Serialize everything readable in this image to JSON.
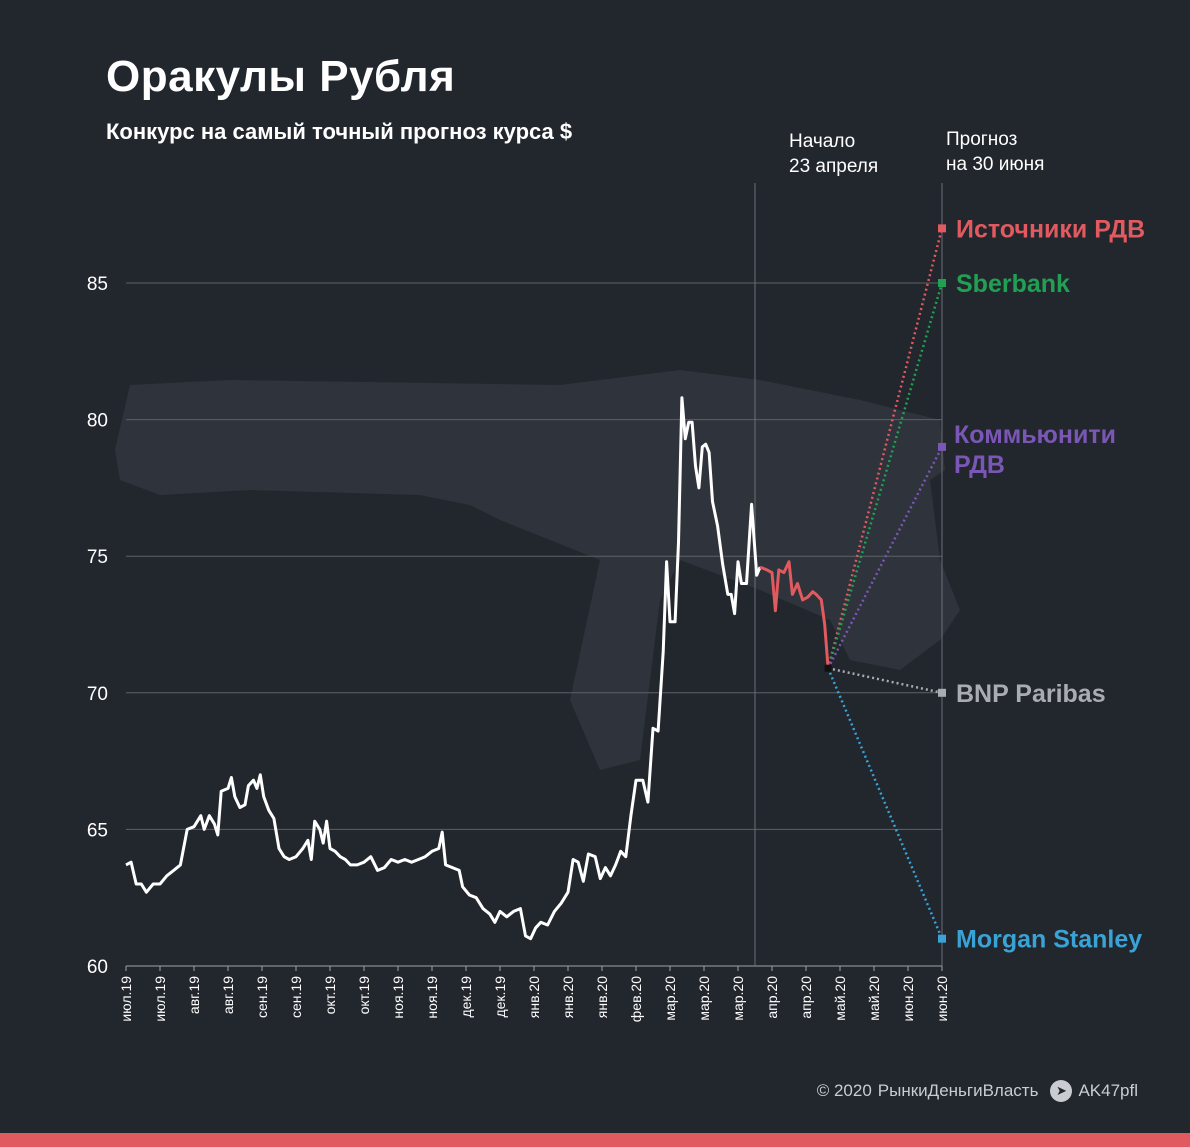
{
  "title": "Оракулы Рубля",
  "subtitle": "Конкурс на самый точный прогноз курса $",
  "annotations": {
    "start_line1": "Начало",
    "start_line2": "23 апреля",
    "forecast_line1": "Прогноз",
    "forecast_line2": "на 30 июня"
  },
  "footer": {
    "copyright": "© 2020",
    "brand": "РынкиДеньгиВласть",
    "telegram_icon": "telegram-icon",
    "handle": "AK47pfl"
  },
  "colors": {
    "background": "#22262d",
    "history": "#ffffff",
    "recent": "#e05a5f",
    "bottom_bar": "#e05a5f"
  },
  "chart_data": {
    "type": "line",
    "ylim": [
      60,
      88
    ],
    "yticks": [
      60,
      65,
      70,
      75,
      80,
      85
    ],
    "grid": true,
    "x_tick_labels": [
      "июл.19",
      "июл.19",
      "авг.19",
      "авг.19",
      "сен.19",
      "сен.19",
      "окт.19",
      "окт.19",
      "ноя.19",
      "ноя.19",
      "дек.19",
      "дек.19",
      "янв.20",
      "янв.20",
      "янв.20",
      "фев.20",
      "мар.20",
      "мар.20",
      "мар.20",
      "апр.20",
      "апр.20",
      "май.20",
      "май.20",
      "июн.20",
      "июн.20"
    ],
    "history": [
      [
        0,
        63.7
      ],
      [
        0.15,
        63.8
      ],
      [
        0.3,
        63.0
      ],
      [
        0.45,
        63.0
      ],
      [
        0.6,
        62.7
      ],
      [
        0.8,
        63.0
      ],
      [
        1.0,
        63.0
      ],
      [
        1.2,
        63.3
      ],
      [
        1.4,
        63.5
      ],
      [
        1.6,
        63.7
      ],
      [
        1.8,
        65.0
      ],
      [
        2.0,
        65.1
      ],
      [
        2.2,
        65.5
      ],
      [
        2.3,
        65.0
      ],
      [
        2.45,
        65.5
      ],
      [
        2.6,
        65.2
      ],
      [
        2.7,
        64.8
      ],
      [
        2.8,
        66.4
      ],
      [
        3.0,
        66.5
      ],
      [
        3.1,
        66.9
      ],
      [
        3.2,
        66.2
      ],
      [
        3.35,
        65.8
      ],
      [
        3.5,
        65.9
      ],
      [
        3.6,
        66.6
      ],
      [
        3.75,
        66.8
      ],
      [
        3.85,
        66.5
      ],
      [
        3.95,
        67.0
      ],
      [
        4.05,
        66.2
      ],
      [
        4.2,
        65.7
      ],
      [
        4.35,
        65.4
      ],
      [
        4.5,
        64.3
      ],
      [
        4.65,
        64.0
      ],
      [
        4.8,
        63.9
      ],
      [
        5.0,
        64.0
      ],
      [
        5.2,
        64.3
      ],
      [
        5.35,
        64.6
      ],
      [
        5.45,
        63.9
      ],
      [
        5.55,
        65.3
      ],
      [
        5.7,
        65.0
      ],
      [
        5.8,
        64.5
      ],
      [
        5.9,
        65.3
      ],
      [
        6.0,
        64.3
      ],
      [
        6.15,
        64.2
      ],
      [
        6.3,
        64.0
      ],
      [
        6.45,
        63.9
      ],
      [
        6.6,
        63.7
      ],
      [
        6.8,
        63.7
      ],
      [
        7.0,
        63.8
      ],
      [
        7.2,
        64.0
      ],
      [
        7.4,
        63.5
      ],
      [
        7.6,
        63.6
      ],
      [
        7.8,
        63.9
      ],
      [
        8.0,
        63.8
      ],
      [
        8.2,
        63.9
      ],
      [
        8.4,
        63.8
      ],
      [
        8.6,
        63.9
      ],
      [
        8.8,
        64.0
      ],
      [
        9.0,
        64.2
      ],
      [
        9.2,
        64.3
      ],
      [
        9.3,
        64.9
      ],
      [
        9.4,
        63.7
      ],
      [
        9.6,
        63.6
      ],
      [
        9.8,
        63.5
      ],
      [
        9.9,
        62.9
      ],
      [
        10.1,
        62.6
      ],
      [
        10.3,
        62.5
      ],
      [
        10.5,
        62.1
      ],
      [
        10.7,
        61.9
      ],
      [
        10.85,
        61.6
      ],
      [
        11.0,
        62.0
      ],
      [
        11.2,
        61.8
      ],
      [
        11.4,
        62.0
      ],
      [
        11.6,
        62.1
      ],
      [
        11.75,
        61.1
      ],
      [
        11.9,
        61.0
      ],
      [
        12.05,
        61.4
      ],
      [
        12.2,
        61.6
      ],
      [
        12.4,
        61.5
      ],
      [
        12.6,
        62.0
      ],
      [
        12.8,
        62.3
      ],
      [
        13.0,
        62.7
      ],
      [
        13.15,
        63.9
      ],
      [
        13.3,
        63.8
      ],
      [
        13.45,
        63.1
      ],
      [
        13.6,
        64.1
      ],
      [
        13.8,
        64.0
      ],
      [
        13.95,
        63.2
      ],
      [
        14.1,
        63.6
      ],
      [
        14.25,
        63.3
      ],
      [
        14.4,
        63.7
      ],
      [
        14.55,
        64.2
      ],
      [
        14.7,
        64.0
      ],
      [
        14.85,
        65.5
      ],
      [
        15.0,
        66.8
      ],
      [
        15.2,
        66.8
      ],
      [
        15.35,
        66.0
      ],
      [
        15.5,
        68.7
      ],
      [
        15.65,
        68.6
      ],
      [
        15.8,
        71.5
      ],
      [
        15.9,
        74.8
      ],
      [
        16.0,
        72.6
      ],
      [
        16.15,
        72.6
      ],
      [
        16.25,
        75.5
      ],
      [
        16.35,
        80.8
      ],
      [
        16.45,
        79.3
      ],
      [
        16.55,
        79.9
      ],
      [
        16.65,
        79.9
      ],
      [
        16.75,
        78.3
      ],
      [
        16.85,
        77.5
      ],
      [
        16.95,
        79.0
      ],
      [
        17.05,
        79.1
      ],
      [
        17.15,
        78.8
      ],
      [
        17.25,
        77.0
      ],
      [
        17.4,
        76.1
      ],
      [
        17.55,
        74.7
      ],
      [
        17.7,
        73.6
      ],
      [
        17.8,
        73.6
      ],
      [
        17.9,
        72.9
      ],
      [
        18.0,
        74.8
      ],
      [
        18.1,
        74.0
      ],
      [
        18.25,
        74.0
      ],
      [
        18.4,
        76.9
      ],
      [
        18.55,
        74.3
      ],
      [
        18.65,
        74.6
      ]
    ],
    "recent": [
      [
        18.65,
        74.6
      ],
      [
        18.85,
        74.5
      ],
      [
        19.0,
        74.4
      ],
      [
        19.1,
        73.0
      ],
      [
        19.2,
        74.5
      ],
      [
        19.35,
        74.4
      ],
      [
        19.5,
        74.8
      ],
      [
        19.6,
        73.6
      ],
      [
        19.75,
        74.0
      ],
      [
        19.9,
        73.4
      ],
      [
        20.05,
        73.5
      ],
      [
        20.2,
        73.7
      ],
      [
        20.3,
        73.6
      ],
      [
        20.45,
        73.4
      ],
      [
        20.55,
        72.5
      ],
      [
        20.65,
        70.9
      ]
    ],
    "forecast_start": [
      20.65,
      70.9
    ],
    "forecast_x": 24.0,
    "start_line_x": 18.5,
    "forecasts": [
      {
        "name": "Источники РДВ",
        "value": 87.0,
        "color": "#e05a5f"
      },
      {
        "name": "Sberbank",
        "value": 85.0,
        "color": "#21a054"
      },
      {
        "name": "Коммьюнити РДВ",
        "value": 79.0,
        "color": "#7b57b5"
      },
      {
        "name": "BNP Paribas",
        "value": 70.0,
        "color": "#a9acb0"
      },
      {
        "name": "Morgan Stanley",
        "value": 61.0,
        "color": "#3aa3d6"
      }
    ]
  }
}
